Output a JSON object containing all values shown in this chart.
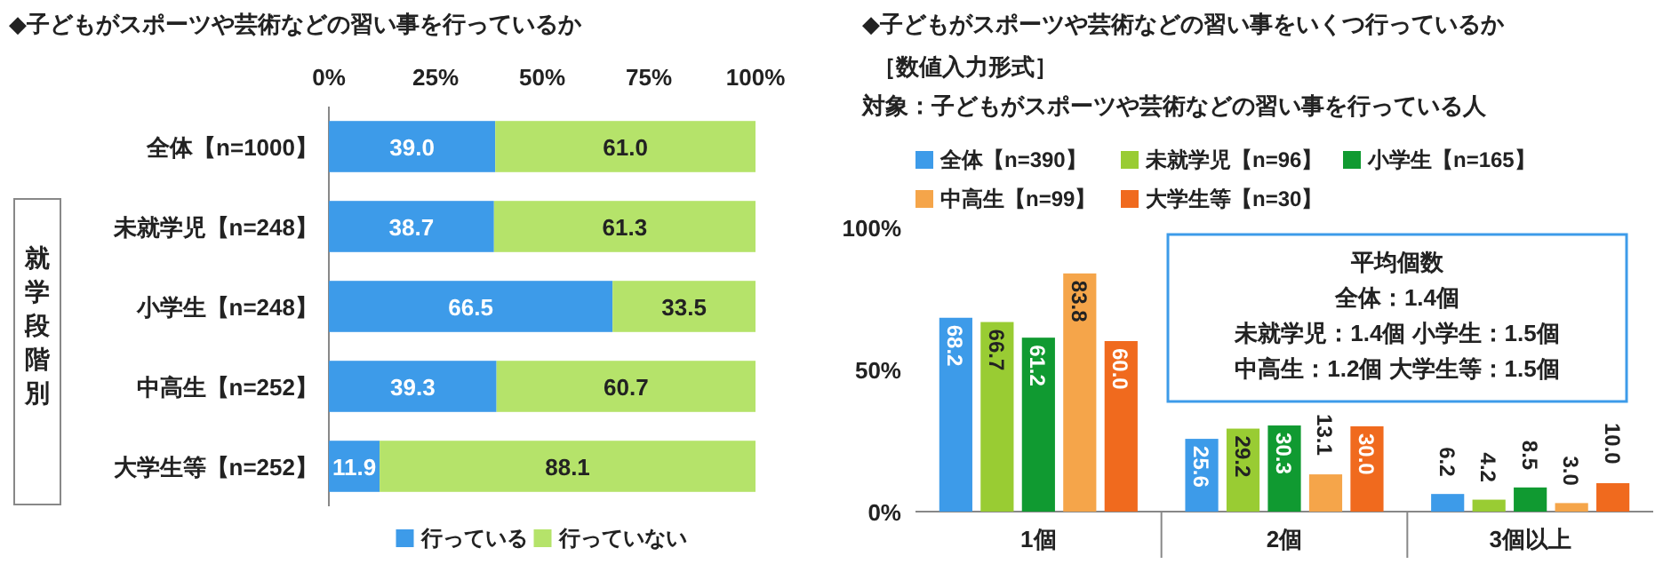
{
  "chart_data": [
    {
      "type": "bar",
      "orientation": "horizontal",
      "stacked": true,
      "title": "◆子どもがスポーツや芸術などの習い事を行っているか",
      "categories": [
        "全体【n=1000】",
        "未就学児【n=248】",
        "小学生【n=248】",
        "中高生【n=252】",
        "大学生等【n=252】"
      ],
      "series": [
        {
          "name": "行っている",
          "color": "#3d9be9",
          "values": [
            39.0,
            38.7,
            66.5,
            39.3,
            11.9
          ],
          "value_labels": [
            "39.0",
            "38.7",
            "66.5",
            "39.3",
            "11.9"
          ]
        },
        {
          "name": "行っていない",
          "color": "#b5e36a",
          "values": [
            61.0,
            61.3,
            33.5,
            60.7,
            88.1
          ],
          "value_labels": [
            "61.0",
            "61.3",
            "33.5",
            "60.7",
            "88.1"
          ]
        }
      ],
      "xlim": [
        0,
        100
      ],
      "xticks": [
        {
          "value": 0,
          "label": "0%"
        },
        {
          "value": 25,
          "label": "25%"
        },
        {
          "value": 50,
          "label": "50%"
        },
        {
          "value": 75,
          "label": "75%"
        },
        {
          "value": 100,
          "label": "100%"
        }
      ],
      "legend": "bottom",
      "annotations": [
        "就学段階別"
      ]
    },
    {
      "type": "bar",
      "title": "◆子どもがスポーツや芸術などの習い事をいくつ行っているか",
      "subtitle": "［数値入力形式］",
      "categories": [
        "1個",
        "2個",
        "3個以上"
      ],
      "series": [
        {
          "name": "全体【n=390】",
          "color": "#3d9be9",
          "values": [
            68.2,
            25.6,
            6.2
          ],
          "value_labels": [
            "68.2",
            "25.6",
            "6.2"
          ]
        },
        {
          "name": "未就学児【n=96】",
          "color": "#99cc33",
          "values": [
            66.7,
            29.2,
            4.2
          ],
          "value_labels": [
            "66.7",
            "29.2",
            "4.2"
          ]
        },
        {
          "name": "小学生【n=165】",
          "color": "#109a31",
          "values": [
            61.2,
            30.3,
            8.5
          ],
          "value_labels": [
            "61.2",
            "30.3",
            "8.5"
          ]
        },
        {
          "name": "中高生【n=99】",
          "color": "#f5a54a",
          "values": [
            83.8,
            13.1,
            3.0
          ],
          "value_labels": [
            "83.8",
            "13.1",
            "3.0"
          ]
        },
        {
          "name": "大学生等【n=30】",
          "color": "#f06a1e",
          "values": [
            60.0,
            30.0,
            10.0
          ],
          "value_labels": [
            "60.0",
            "30.0",
            "10.0"
          ]
        }
      ],
      "ylim": [
        0,
        100
      ],
      "yticks": [
        {
          "value": 0,
          "label": "0%"
        },
        {
          "value": 50,
          "label": "50%"
        },
        {
          "value": 100,
          "label": "100%"
        }
      ],
      "legend": "top",
      "annotations": [
        "対象：子どもがスポーツや芸術などの習い事を行っている人",
        "平均個数",
        "全体：1.4個",
        "未就学児：1.4個 小学生：1.5個",
        "中高生：1.2個 大学生等：1.5個"
      ]
    }
  ]
}
